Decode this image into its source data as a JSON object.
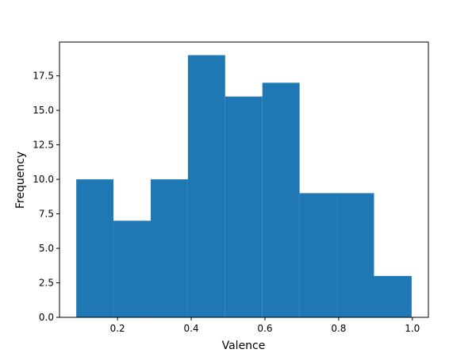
{
  "chart_data": {
    "type": "histogram",
    "xlabel": "Valence",
    "ylabel": "Frequency",
    "bins": [
      0.088,
      0.189,
      0.29,
      0.391,
      0.492,
      0.593,
      0.694,
      0.795,
      0.896,
      0.998
    ],
    "values": [
      10,
      7,
      10,
      19,
      16,
      17,
      9,
      9,
      3
    ],
    "color": "#1f77b4",
    "xlim": [
      0.0425,
      1.0435
    ],
    "ylim": [
      0,
      19.95
    ],
    "xticks": [
      0.2,
      0.4,
      0.6,
      0.8,
      {
        "value": 1.0,
        "label": "1.0"
      }
    ],
    "yticks": [
      {
        "value": 0,
        "label": "0.0"
      },
      2.5,
      {
        "value": 5,
        "label": "5.0"
      },
      7.5,
      {
        "value": 10,
        "label": "10.0"
      },
      12.5,
      {
        "value": 15,
        "label": "15.0"
      },
      17.5
    ]
  }
}
